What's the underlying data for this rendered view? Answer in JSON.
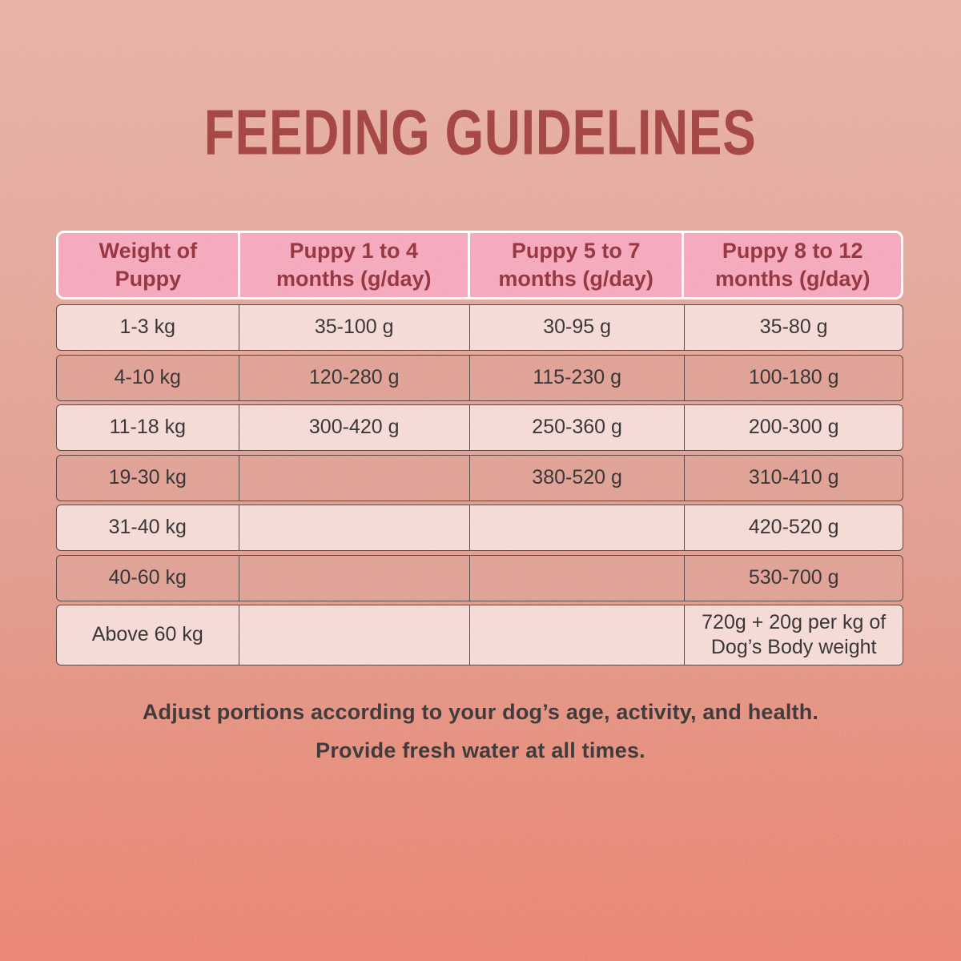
{
  "page": {
    "title": "FEEDING GUIDELINES",
    "footer": {
      "line1": "Adjust portions according to your dog’s age, activity, and health.",
      "line2": "Provide fresh water at all times."
    }
  },
  "table": {
    "headers": [
      "Weight of\nPuppy",
      "Puppy 1 to 4\nmonths (g/day)",
      "Puppy 5 to 7\nmonths (g/day)",
      "Puppy 8 to 12\nmonths (g/day)"
    ],
    "rows": [
      {
        "cells": [
          "1-3 kg",
          "35-100 g",
          "30-95 g",
          "35-80 g"
        ]
      },
      {
        "cells": [
          "4-10 kg",
          "120-280 g",
          "115-230 g",
          "100-180 g"
        ]
      },
      {
        "cells": [
          "11-18 kg",
          "300-420 g",
          "250-360 g",
          "200-300 g"
        ]
      },
      {
        "cells": [
          "19-30 kg",
          "",
          "380-520 g",
          "310-410 g"
        ]
      },
      {
        "cells": [
          "31-40 kg",
          "",
          "",
          "420-520 g"
        ]
      },
      {
        "cells": [
          "40-60 kg",
          "",
          "",
          "530-700 g"
        ]
      },
      {
        "cells": [
          "Above 60 kg",
          "",
          "",
          "720g + 20g per kg of\nDog’s Body weight"
        ]
      }
    ]
  },
  "chart_data": {
    "type": "table",
    "title": "FEEDING GUIDELINES",
    "columns": [
      "Weight of Puppy",
      "Puppy 1 to 4 months (g/day)",
      "Puppy 5 to 7 months (g/day)",
      "Puppy 8 to 12 months (g/day)"
    ],
    "rows": [
      [
        "1-3 kg",
        "35-100 g",
        "30-95 g",
        "35-80 g"
      ],
      [
        "4-10 kg",
        "120-280 g",
        "115-230 g",
        "100-180 g"
      ],
      [
        "11-18 kg",
        "300-420 g",
        "250-360 g",
        "200-300 g"
      ],
      [
        "19-30 kg",
        "",
        "380-520 g",
        "310-410 g"
      ],
      [
        "31-40 kg",
        "",
        "",
        "420-520 g"
      ],
      [
        "40-60 kg",
        "",
        "",
        "530-700 g"
      ],
      [
        "Above 60 kg",
        "",
        "",
        "720g + 20g per kg of Dog’s Body weight"
      ]
    ],
    "notes": [
      "Adjust portions according to your dog’s age, activity, and health.",
      "Provide fresh water at all times."
    ]
  },
  "colors": {
    "background_top": "#e6aca1",
    "background_bottom": "#e87d69",
    "title_maroon": "#9c3b39",
    "header_pink": "#f4a2b7",
    "header_text": "#8e2b35",
    "row_light": "#f4d7d2",
    "row_dark": "#dd9a8e",
    "row_border": "#4e3d3a",
    "cell_text": "#2d2a2b",
    "footer_text": "#332e2f"
  }
}
